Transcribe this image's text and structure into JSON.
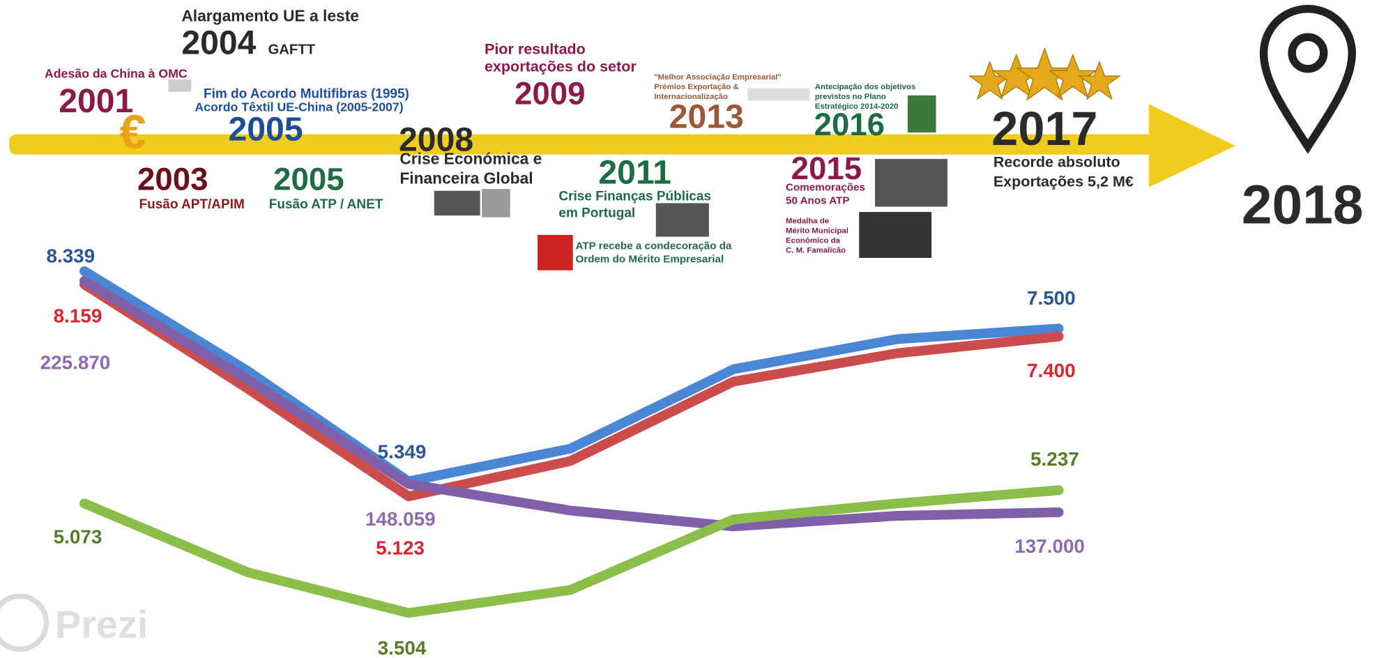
{
  "timeline": {
    "end_year": "2018",
    "events": [
      {
        "year": "2004",
        "lines": [
          "Alargamento UE a leste"
        ],
        "tag": "GAFTT"
      },
      {
        "year": "2001",
        "lines": [
          "Adesão da China à OMC"
        ]
      },
      {
        "year": "2005",
        "lines": [
          "Fim do Acordo Multifibras (1995)",
          "Acordo Têxtil UE-China (2005-2007)"
        ]
      },
      {
        "year": "2003",
        "lines": [
          "Fusão APT/APIM"
        ]
      },
      {
        "year": "2005",
        "lines": [
          "Fusão ATP / ANET"
        ]
      },
      {
        "year": "2008",
        "lines": [
          "Crise Económica e",
          "Financeira Global"
        ]
      },
      {
        "year": "2009",
        "lines": [
          "Pior resultado",
          "exportações do setor"
        ]
      },
      {
        "year": "2013",
        "lines": [
          "\"Melhor Associação Empresarial\"",
          "Prémios Exportação &",
          "Internacionalização"
        ]
      },
      {
        "year": "2011",
        "lines": [
          "Crise Finanças Públicas",
          "em Portugal",
          "ATP recebe a condecoração da",
          "Ordem do Mérito Empresarial"
        ]
      },
      {
        "year": "2016",
        "lines": [
          "Antecipação dos objetivos",
          "previstos no Plano",
          "Estratégico 2014-2020"
        ]
      },
      {
        "year": "2015",
        "lines": [
          "Comemorações",
          "50 Anos ATP",
          "Medalha de",
          "Mérito Municipal",
          "Económico da",
          "C. M. Famalicão"
        ]
      },
      {
        "year": "2017",
        "lines": [
          "Recorde absoluto",
          "Exportações 5,2 M€"
        ]
      }
    ]
  },
  "series_labels": [
    {
      "labels": [
        "8.339",
        "5.349",
        "7.500"
      ]
    },
    {
      "labels": [
        "8.159",
        "5.123",
        "7.400"
      ]
    },
    {
      "labels": [
        "225.870",
        "148.059",
        "137.000"
      ]
    },
    {
      "labels": [
        "5.073",
        "3.504",
        "5.237"
      ]
    }
  ],
  "watermark": "Prezi"
}
